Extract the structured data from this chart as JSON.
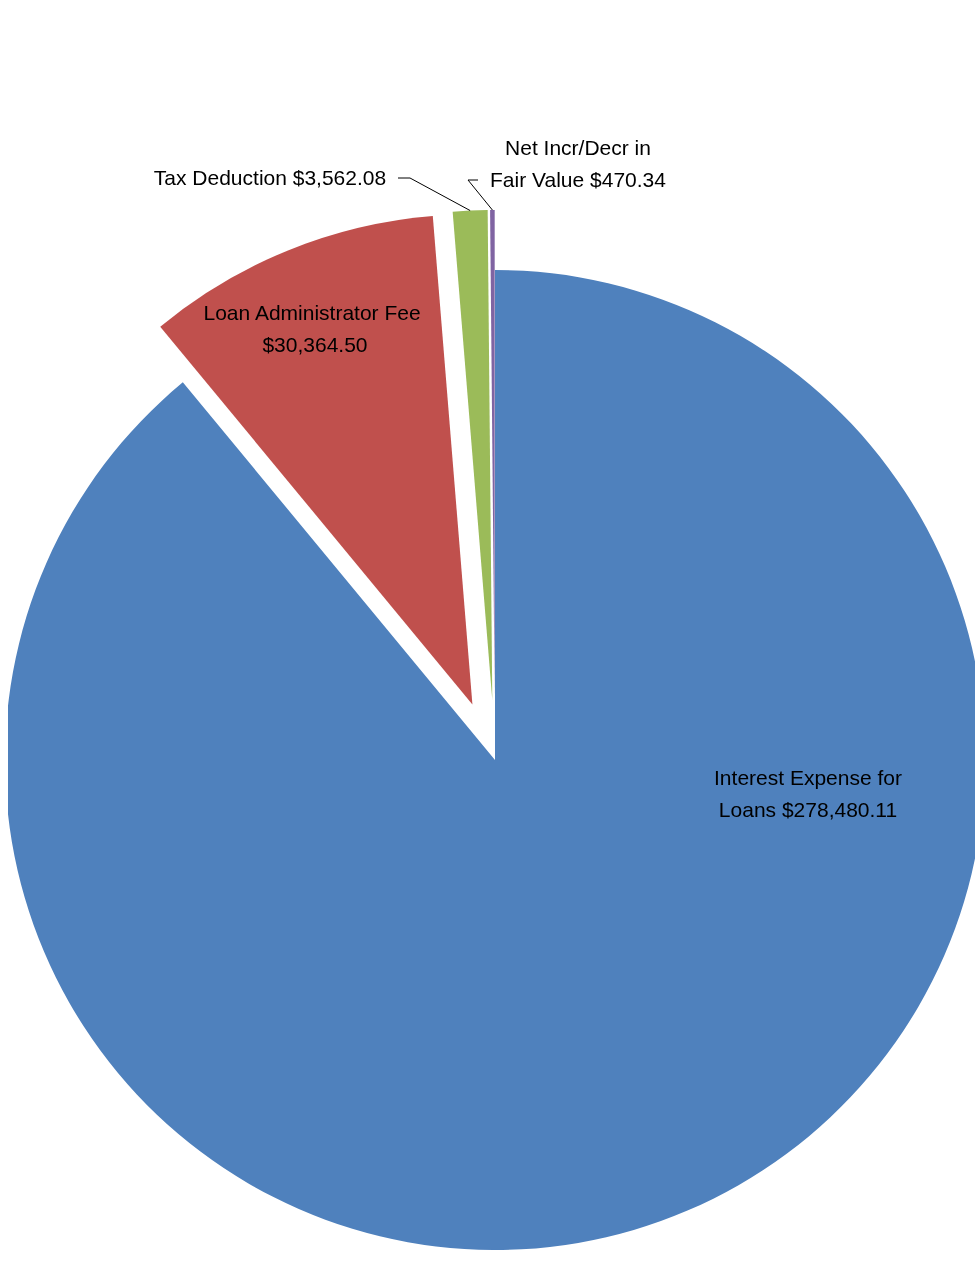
{
  "chart_data": {
    "type": "pie",
    "categories": [
      "Interest Expense for Loans",
      "Loan Administrator Fee",
      "Tax Deduction",
      "Net Incr/Decr in Fair Value"
    ],
    "values": [
      278480.11,
      30364.5,
      3562.08,
      470.34
    ],
    "value_labels": [
      "$278,480.11",
      "$30,364.50",
      "$3,562.08",
      "$470.34"
    ],
    "colors": [
      "#4f81bd",
      "#c0504d",
      "#9bbb59",
      "#8064a2"
    ]
  }
}
